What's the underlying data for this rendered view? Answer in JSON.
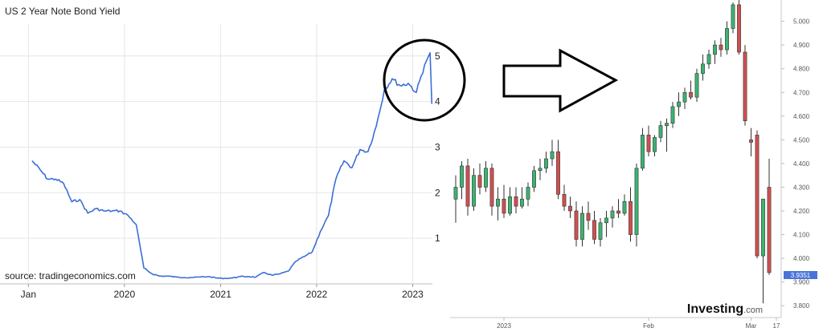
{
  "chart_data": [
    {
      "type": "line",
      "title": "US 2 Year Note Bond Yield",
      "source": "source: tradingeconomics.com",
      "color": "#3a6fd8",
      "x_ticks": [
        "Jan",
        "2020",
        "2021",
        "2022",
        "2023"
      ],
      "y_ticks": [
        "1",
        "2",
        "3",
        "4",
        "5"
      ],
      "ylim": [
        0,
        5.7
      ],
      "grid": true,
      "series": [
        {
          "x": [
            "2019-01",
            "2019-02",
            "2019-03",
            "2019-04",
            "2019-05",
            "2019-06",
            "2019-07",
            "2019-08",
            "2019-09",
            "2019-10",
            "2019-11",
            "2019-12",
            "2020-01",
            "2020-02",
            "2020-03",
            "2020-04",
            "2020-05",
            "2020-06",
            "2020-07",
            "2020-08",
            "2020-09",
            "2020-10",
            "2020-11",
            "2020-12",
            "2021-01",
            "2021-02",
            "2021-03",
            "2021-04",
            "2021-05",
            "2021-06",
            "2021-07",
            "2021-08",
            "2021-09",
            "2021-10",
            "2021-11",
            "2021-12",
            "2022-01",
            "2022-02",
            "2022-03",
            "2022-04",
            "2022-05",
            "2022-06",
            "2022-07",
            "2022-08",
            "2022-09",
            "2022-10",
            "2022-11",
            "2022-12",
            "2023-01",
            "2023-02",
            "2023-03-08",
            "2023-03-15"
          ],
          "values": [
            2.7,
            2.5,
            2.3,
            2.3,
            2.2,
            1.8,
            1.85,
            1.55,
            1.65,
            1.6,
            1.6,
            1.6,
            1.5,
            1.3,
            0.35,
            0.22,
            0.17,
            0.17,
            0.15,
            0.14,
            0.14,
            0.15,
            0.16,
            0.13,
            0.12,
            0.13,
            0.16,
            0.16,
            0.15,
            0.25,
            0.19,
            0.22,
            0.28,
            0.5,
            0.6,
            0.7,
            1.15,
            1.5,
            2.3,
            2.7,
            2.55,
            2.95,
            2.9,
            3.45,
            4.25,
            4.5,
            4.35,
            4.4,
            4.2,
            4.8,
            5.07,
            3.95
          ]
        }
      ],
      "annotation": "circle highlighting the 2023 peak and drop"
    },
    {
      "type": "candlestick",
      "brand": "Investing.com",
      "price_label": "3.9351",
      "up_color": "#3cb371",
      "down_color": "#d05050",
      "x_ticks": [
        "2023",
        "Feb",
        "Mar",
        "17"
      ],
      "y_ticks": [
        "3.800",
        "3.900",
        "4.000",
        "4.100",
        "4.200",
        "4.300",
        "4.400",
        "4.500",
        "4.600",
        "4.700",
        "4.800",
        "4.900",
        "5.000"
      ],
      "ylim": [
        3.75,
        5.09
      ],
      "series": [
        {
          "name": "daily",
          "ohlc": [
            [
              4.25,
              4.35,
              4.15,
              4.3
            ],
            [
              4.3,
              4.41,
              4.25,
              4.39
            ],
            [
              4.39,
              4.42,
              4.18,
              4.22
            ],
            [
              4.22,
              4.38,
              4.2,
              4.35
            ],
            [
              4.35,
              4.4,
              4.27,
              4.3
            ],
            [
              4.3,
              4.41,
              4.28,
              4.38
            ],
            [
              4.38,
              4.4,
              4.18,
              4.22
            ],
            [
              4.22,
              4.3,
              4.16,
              4.25
            ],
            [
              4.25,
              4.31,
              4.17,
              4.19
            ],
            [
              4.19,
              4.3,
              4.18,
              4.26
            ],
            [
              4.26,
              4.3,
              4.19,
              4.22
            ],
            [
              4.22,
              4.3,
              4.21,
              4.25
            ],
            [
              4.25,
              4.32,
              4.22,
              4.3
            ],
            [
              4.3,
              4.39,
              4.28,
              4.37
            ],
            [
              4.37,
              4.42,
              4.33,
              4.38
            ],
            [
              4.38,
              4.45,
              4.36,
              4.42
            ],
            [
              4.42,
              4.5,
              4.39,
              4.45
            ],
            [
              4.45,
              4.5,
              4.25,
              4.27
            ],
            [
              4.27,
              4.31,
              4.2,
              4.22
            ],
            [
              4.22,
              4.26,
              4.17,
              4.2
            ],
            [
              4.2,
              4.24,
              4.05,
              4.08
            ],
            [
              4.08,
              4.22,
              4.05,
              4.19
            ],
            [
              4.19,
              4.24,
              4.12,
              4.16
            ],
            [
              4.16,
              4.2,
              4.06,
              4.08
            ],
            [
              4.08,
              4.17,
              4.05,
              4.15
            ],
            [
              4.15,
              4.2,
              4.09,
              4.17
            ],
            [
              4.17,
              4.22,
              4.13,
              4.2
            ],
            [
              4.2,
              4.25,
              4.17,
              4.19
            ],
            [
              4.19,
              4.27,
              4.18,
              4.24
            ],
            [
              4.24,
              4.3,
              4.07,
              4.1
            ],
            [
              4.1,
              4.4,
              4.05,
              4.38
            ],
            [
              4.38,
              4.55,
              4.37,
              4.52
            ],
            [
              4.52,
              4.56,
              4.43,
              4.45
            ],
            [
              4.45,
              4.52,
              4.43,
              4.51
            ],
            [
              4.51,
              4.58,
              4.49,
              4.56
            ],
            [
              4.56,
              4.59,
              4.45,
              4.57
            ],
            [
              4.57,
              4.66,
              4.55,
              4.64
            ],
            [
              4.64,
              4.7,
              4.6,
              4.66
            ],
            [
              4.66,
              4.72,
              4.63,
              4.7
            ],
            [
              4.7,
              4.75,
              4.67,
              4.68
            ],
            [
              4.68,
              4.8,
              4.66,
              4.78
            ],
            [
              4.78,
              4.86,
              4.75,
              4.82
            ],
            [
              4.82,
              4.88,
              4.8,
              4.86
            ],
            [
              4.86,
              4.92,
              4.82,
              4.9
            ],
            [
              4.9,
              4.93,
              4.85,
              4.88
            ],
            [
              4.88,
              5.0,
              4.86,
              4.97
            ],
            [
              4.97,
              5.08,
              4.95,
              5.07
            ],
            [
              5.07,
              5.09,
              4.86,
              4.87
            ],
            [
              4.87,
              4.9,
              4.56,
              4.58
            ],
            [
              4.5,
              4.55,
              4.43,
              4.49
            ],
            [
              4.52,
              4.54,
              4.0,
              4.01
            ],
            [
              4.01,
              4.25,
              3.81,
              4.25
            ],
            [
              4.3,
              4.42,
              3.93,
              3.94
            ]
          ]
        }
      ]
    }
  ]
}
